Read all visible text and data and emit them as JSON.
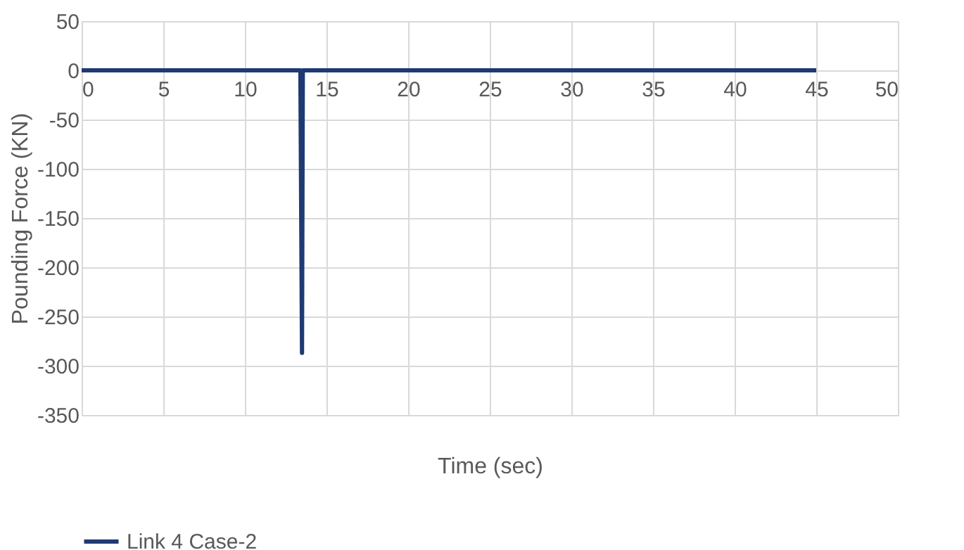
{
  "chart_data": {
    "type": "line",
    "xlabel": "Time (sec)",
    "ylabel": "Pounding Force (KN)",
    "x": [
      0,
      13.4,
      13.5,
      13.55,
      45
    ],
    "series": [
      {
        "name": "Link 4 Case-2",
        "color": "#1f3a73",
        "values": [
          0,
          0,
          -287,
          0,
          0
        ]
      }
    ],
    "xlim": [
      0,
      50
    ],
    "xticks": [
      0,
      5,
      10,
      15,
      20,
      25,
      30,
      35,
      40,
      45,
      50
    ],
    "ylim": [
      -350,
      50
    ],
    "yticks": [
      -350,
      -300,
      -250,
      -200,
      -150,
      -100,
      -50,
      0,
      50
    ],
    "grid": true,
    "legend": "bottom",
    "marker": "none",
    "line_style": "solid"
  }
}
